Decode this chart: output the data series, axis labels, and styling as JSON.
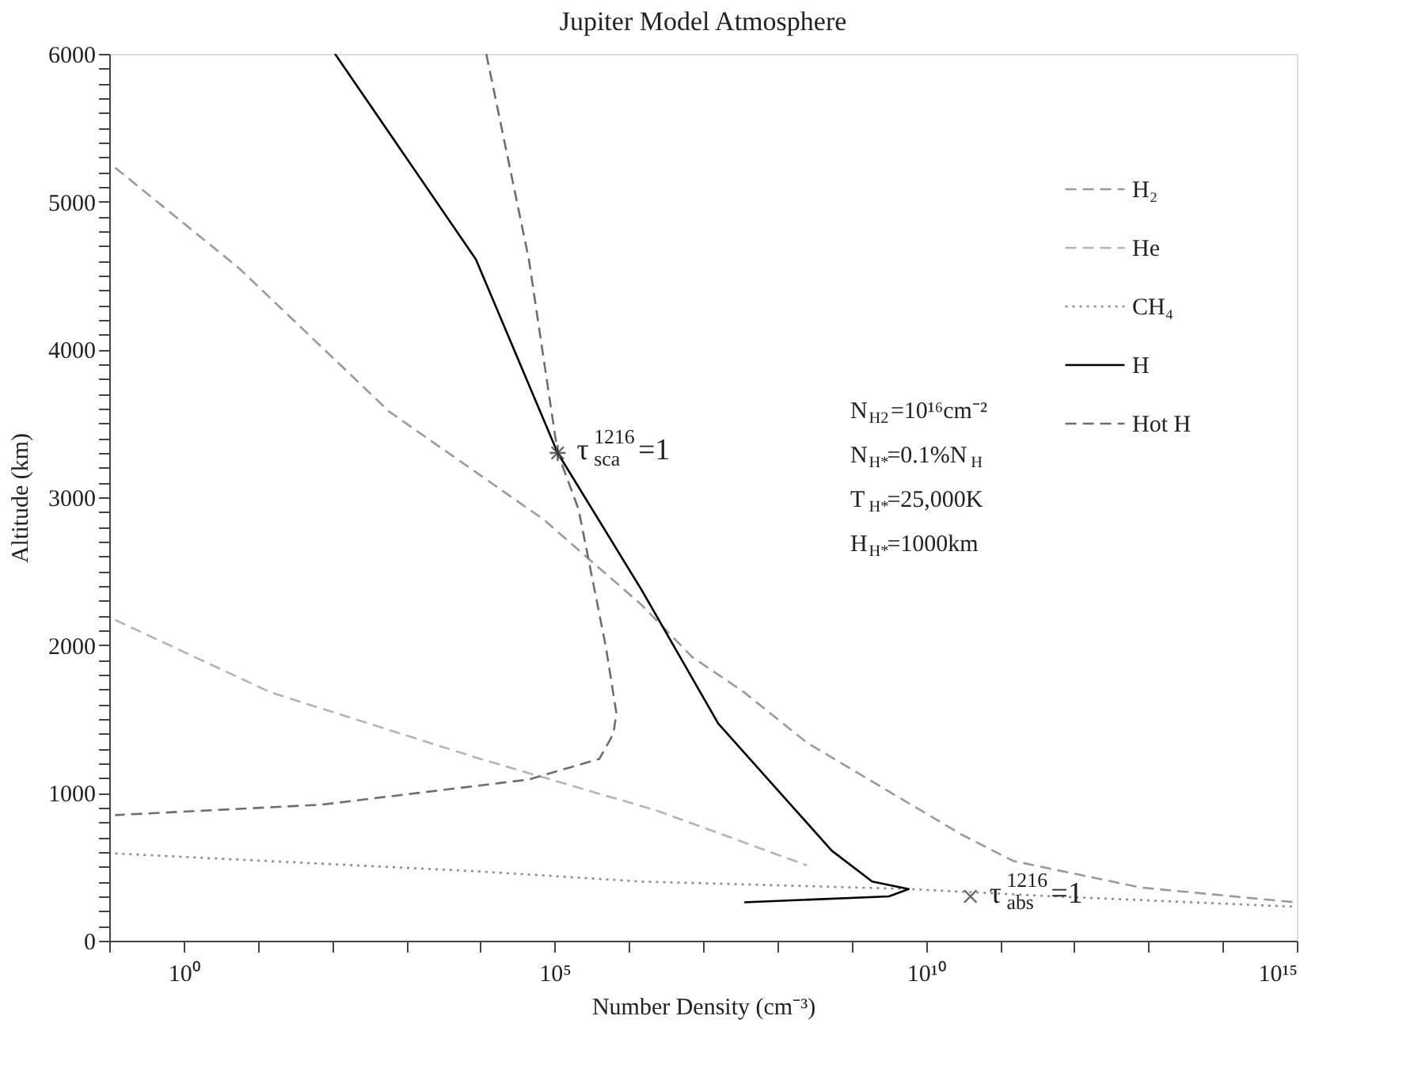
{
  "chart_data": {
    "type": "line",
    "title": "Jupiter Model Atmosphere",
    "xlabel": "Number Density (cm⁻³)",
    "ylabel": "Altitude (km)",
    "log": "x",
    "xlim": [
      0.1,
      1000000000000000.0
    ],
    "ylim": [
      0,
      6000
    ],
    "grid": false,
    "legend": "top right",
    "marker": "none",
    "xticks": [
      {
        "value": 0.1,
        "label": null
      },
      {
        "value": 1,
        "label": "10⁰"
      },
      {
        "value": 10,
        "label": null
      },
      {
        "value": 100,
        "label": null
      },
      {
        "value": 1000,
        "label": null
      },
      {
        "value": 10000,
        "label": null
      },
      {
        "value": 100000,
        "label": "10⁵"
      },
      {
        "value": 1000000.0,
        "label": null
      },
      {
        "value": 10000000.0,
        "label": null
      },
      {
        "value": 100000000.0,
        "label": null
      },
      {
        "value": 1000000000.0,
        "label": null
      },
      {
        "value": 10000000000.0,
        "label": "10¹⁰"
      },
      {
        "value": 100000000000.0,
        "label": null
      },
      {
        "value": 1000000000000.0,
        "label": null
      },
      {
        "value": 10000000000000.0,
        "label": null
      },
      {
        "value": 100000000000000.0,
        "label": null
      },
      {
        "value": 1000000000000000.0,
        "label": "10¹⁵"
      }
    ],
    "yticks": [
      0,
      {
        "value": 100,
        "label": null
      },
      {
        "value": 200,
        "label": null
      },
      {
        "value": 300,
        "label": null
      },
      {
        "value": 400,
        "label": null
      },
      {
        "value": 500,
        "label": null
      },
      {
        "value": 600,
        "label": null
      },
      {
        "value": 700,
        "label": null
      },
      {
        "value": 800,
        "label": null
      },
      {
        "value": 900,
        "label": null
      },
      1000,
      {
        "value": 1100,
        "label": null
      },
      {
        "value": 1200,
        "label": null
      },
      {
        "value": 1300,
        "label": null
      },
      {
        "value": 1400,
        "label": null
      },
      {
        "value": 1500,
        "label": null
      },
      {
        "value": 1600,
        "label": null
      },
      {
        "value": 1700,
        "label": null
      },
      {
        "value": 1800,
        "label": null
      },
      {
        "value": 1900,
        "label": null
      },
      2000,
      {
        "value": 2100,
        "label": null
      },
      {
        "value": 2200,
        "label": null
      },
      {
        "value": 2300,
        "label": null
      },
      {
        "value": 2400,
        "label": null
      },
      {
        "value": 2500,
        "label": null
      },
      {
        "value": 2600,
        "label": null
      },
      {
        "value": 2700,
        "label": null
      },
      {
        "value": 2800,
        "label": null
      },
      {
        "value": 2900,
        "label": null
      },
      3000,
      {
        "value": 3100,
        "label": null
      },
      {
        "value": 3200,
        "label": null
      },
      {
        "value": 3300,
        "label": null
      },
      {
        "value": 3400,
        "label": null
      },
      {
        "value": 3500,
        "label": null
      },
      {
        "value": 3600,
        "label": null
      },
      {
        "value": 3700,
        "label": null
      },
      {
        "value": 3800,
        "label": null
      },
      {
        "value": 3900,
        "label": null
      },
      4000,
      {
        "value": 4100,
        "label": null
      },
      {
        "value": 4200,
        "label": null
      },
      {
        "value": 4300,
        "label": null
      },
      {
        "value": 4400,
        "label": null
      },
      {
        "value": 4500,
        "label": null
      },
      {
        "value": 4600,
        "label": null
      },
      {
        "value": 4700,
        "label": null
      },
      {
        "value": 4800,
        "label": null
      },
      {
        "value": 4900,
        "label": null
      },
      5000,
      {
        "value": 5100,
        "label": null
      },
      {
        "value": 5200,
        "label": null
      },
      {
        "value": 5300,
        "label": null
      },
      {
        "value": 5400,
        "label": null
      },
      {
        "value": 5500,
        "label": null
      },
      {
        "value": 5600,
        "label": null
      },
      {
        "value": 5700,
        "label": null
      },
      {
        "value": 5800,
        "label": null
      },
      {
        "value": 5900,
        "label": null
      },
      6000
    ],
    "series": [
      {
        "name": "H₂",
        "color": "#9a9a9a",
        "line_style": "dashed",
        "x": [
          0.12,
          5.6,
          590,
          71000.0,
          1500000.0,
          7100000.0,
          36000000.0,
          250000000.0,
          30000000000.0,
          150000000000.0,
          7900000000000.0,
          950000000000000.0
        ],
        "values": [
          5230,
          4550,
          3580,
          2850,
          2270,
          1920,
          1680,
          1340,
          720,
          540,
          360,
          260
        ]
      },
      {
        "name": "He",
        "color": "#b4b4b4",
        "line_style": "dashed",
        "x": [
          0.12,
          15,
          10000.0,
          2400000.0,
          250000000.0
        ],
        "values": [
          2170,
          1680,
          1230,
          880,
          510
        ]
      },
      {
        "name": "CH₄",
        "color": "#8c8c8c",
        "line_style": "dotted",
        "x": [
          0.12,
          8700.0,
          1500000.0,
          5900000000.0,
          540000000000.0,
          950000000000000.0
        ],
        "values": [
          590,
          470,
          400,
          350,
          300,
          230
        ]
      },
      {
        "name": "H",
        "color": "#000000",
        "line_style": "solid",
        "x": [
          110,
          8700.0,
          110000.0,
          1500000.0,
          16000000.0,
          540000000.0,
          1900000000.0,
          5900000000.0,
          3200000000.0,
          36000000.0
        ],
        "values": [
          6000,
          4610,
          3300,
          2370,
          1470,
          610,
          400,
          350,
          300,
          260
        ]
      },
      {
        "name": "Hot H",
        "color": "#6e6e6e",
        "line_style": "dashed",
        "x": [
          12000.0,
          45000.0,
          110000.0,
          210000.0,
          490000.0,
          680000.0,
          620000.0,
          400000.0,
          44000.0,
          71,
          0.12
        ],
        "values": [
          6000,
          4610,
          3300,
          2920,
          1990,
          1540,
          1400,
          1230,
          1090,
          920,
          850
        ]
      }
    ],
    "annotations": [
      {
        "text": "τ$^{1216}$$_{sca}$=1",
        "x": 110000.0,
        "y": 3300
      },
      {
        "text": "τ$^{1216}$$_{abs}$=1",
        "x": 40000000000.0,
        "y": 300
      },
      "N$_{H2}$=10¹⁶cm⁻²",
      "N$_{H*}$=0.1%N$_{H}$",
      "T$_{H*}$=25,000K",
      "H$_{H*}$=1000km"
    ]
  }
}
